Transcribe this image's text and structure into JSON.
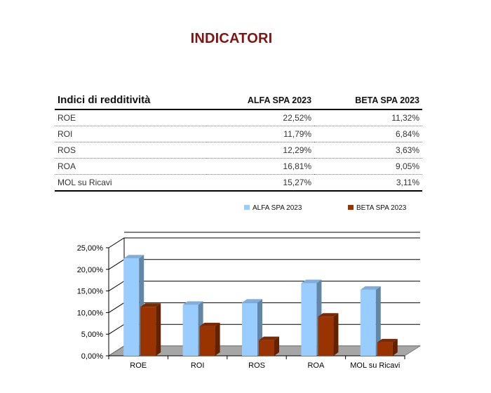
{
  "title": "INDICATORI",
  "table": {
    "header": {
      "row_label": "Indici di redditività",
      "col1": "ALFA SPA 2023",
      "col2": "BETA SPA 2023"
    },
    "rows": [
      {
        "label": "ROE",
        "alfa": "22,52%",
        "beta": "11,32%"
      },
      {
        "label": "ROI",
        "alfa": "11,79%",
        "beta": "6,84%"
      },
      {
        "label": "ROS",
        "alfa": "12,29%",
        "beta": "3,63%"
      },
      {
        "label": "ROA",
        "alfa": "16,81%",
        "beta": "9,05%"
      },
      {
        "label": "MOL su Ricavi",
        "alfa": "15,27%",
        "beta": "3,11%"
      }
    ]
  },
  "colors": {
    "title": "#7f1414",
    "alfa": "#99ccff",
    "beta": "#993300",
    "floor": "#a6a6a6"
  },
  "chart_data": {
    "type": "bar",
    "categories": [
      "ROE",
      "ROI",
      "ROS",
      "ROA",
      "MOL su Ricavi"
    ],
    "series": [
      {
        "name": "ALFA SPA 2023",
        "values": [
          22.52,
          11.79,
          12.29,
          16.81,
          15.27
        ]
      },
      {
        "name": "BETA SPA 2023",
        "values": [
          11.32,
          6.84,
          3.63,
          9.05,
          3.11
        ]
      }
    ],
    "ylim": [
      0,
      25
    ],
    "yticks": [
      "0,00%",
      "5,00%",
      "10,00%",
      "15,00%",
      "20,00%",
      "25,00%"
    ],
    "grid": true,
    "legend": "top",
    "style": "3d"
  }
}
